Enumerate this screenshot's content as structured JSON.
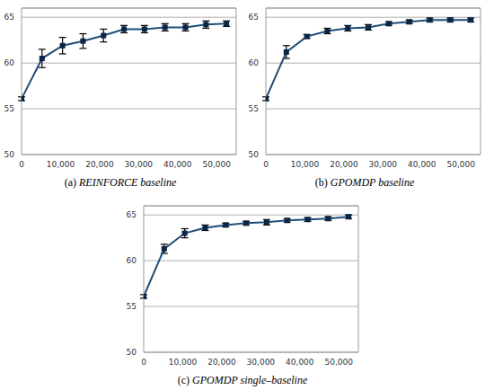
{
  "chart_data": [
    {
      "type": "line",
      "title": "(a) REINFORCE baseline",
      "x": [
        0,
        5250,
        10500,
        15750,
        21000,
        26250,
        31500,
        36750,
        42000,
        47250,
        52500
      ],
      "values": [
        56.1,
        60.5,
        61.9,
        62.4,
        63.0,
        63.7,
        63.7,
        63.9,
        63.9,
        64.2,
        64.3
      ],
      "errors": [
        0.2,
        1.0,
        0.9,
        0.8,
        0.7,
        0.4,
        0.4,
        0.4,
        0.4,
        0.4,
        0.3
      ],
      "color": "#1f4e79",
      "marker": "square",
      "xlim": [
        0,
        55000
      ],
      "xticks": [
        0,
        {
          "value": 10000,
          "label": "10,000"
        },
        {
          "value": 20000,
          "label": "20,000"
        },
        {
          "value": 30000,
          "label": "30,000"
        },
        {
          "value": 40000,
          "label": "40,000"
        },
        {
          "value": 50000,
          "label": "50,000"
        }
      ],
      "ylim": [
        50,
        66
      ],
      "yticks": [
        50,
        55,
        60,
        65
      ],
      "grid": true
    },
    {
      "type": "line",
      "title": "(b) GPOMDP baseline",
      "x": [
        0,
        5250,
        10500,
        15750,
        21000,
        26250,
        31500,
        36750,
        42000,
        47250,
        52500
      ],
      "values": [
        56.1,
        61.2,
        62.9,
        63.5,
        63.8,
        63.9,
        64.3,
        64.5,
        64.7,
        64.7,
        64.7
      ],
      "errors": [
        0.2,
        0.7,
        0.2,
        0.3,
        0.3,
        0.3,
        0.2,
        0.2,
        0.2,
        0.2,
        0.2
      ],
      "color": "#1f4e79",
      "marker": "square",
      "xlim": [
        0,
        55000
      ],
      "xticks": [
        0,
        {
          "value": 10000,
          "label": "10,000"
        },
        {
          "value": 20000,
          "label": "20,000"
        },
        {
          "value": 30000,
          "label": "30,000"
        },
        {
          "value": 40000,
          "label": "40,000"
        },
        {
          "value": 50000,
          "label": "50,000"
        }
      ],
      "ylim": [
        50,
        66
      ],
      "yticks": [
        50,
        55,
        60,
        65
      ],
      "grid": true
    },
    {
      "type": "line",
      "title": "(c) GPOMDP single–baseline",
      "x": [
        0,
        5250,
        10500,
        15750,
        21000,
        26250,
        31500,
        36750,
        42000,
        47250,
        52500
      ],
      "values": [
        56.1,
        61.3,
        63.0,
        63.6,
        63.9,
        64.1,
        64.2,
        64.4,
        64.5,
        64.6,
        64.8
      ],
      "errors": [
        0.2,
        0.5,
        0.5,
        0.3,
        0.2,
        0.2,
        0.3,
        0.2,
        0.2,
        0.2,
        0.2
      ],
      "color": "#1f4e79",
      "marker": "square",
      "xlim": [
        0,
        55000
      ],
      "xticks": [
        0,
        {
          "value": 10000,
          "label": "10,000"
        },
        {
          "value": 20000,
          "label": "20,000"
        },
        {
          "value": 30000,
          "label": "30,000"
        },
        {
          "value": 40000,
          "label": "40,000"
        },
        {
          "value": 50000,
          "label": "50,000"
        }
      ],
      "ylim": [
        50,
        66
      ],
      "yticks": [
        50,
        55,
        60,
        65
      ],
      "grid": true
    }
  ]
}
